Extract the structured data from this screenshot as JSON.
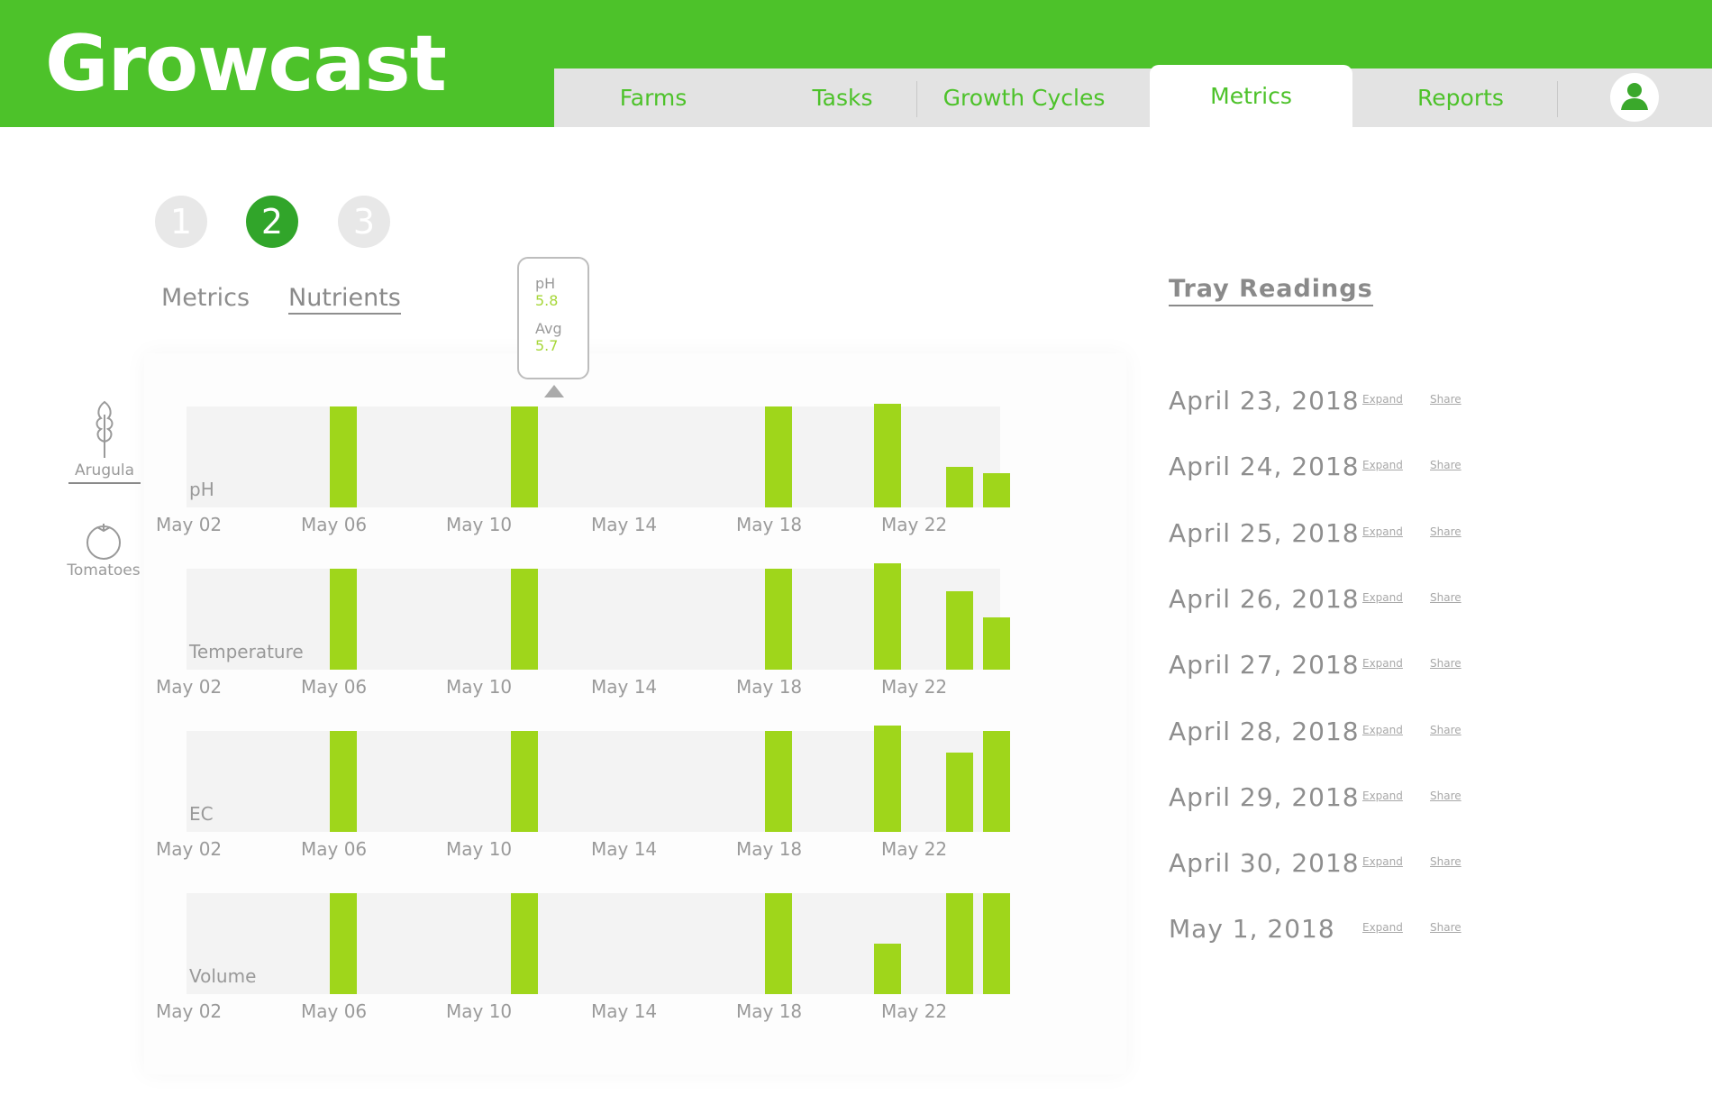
{
  "app": {
    "title": "Growcast"
  },
  "nav": {
    "tabs": [
      {
        "label": "Farms"
      },
      {
        "label": "Tasks"
      },
      {
        "label": "Growth Cycles"
      },
      {
        "label": "Metrics",
        "active": true
      },
      {
        "label": "Reports"
      }
    ],
    "profile_icon": "user-icon"
  },
  "steps": [
    {
      "label": "1"
    },
    {
      "label": "2",
      "active": true
    },
    {
      "label": "3"
    }
  ],
  "subtabs": [
    {
      "label": "Metrics"
    },
    {
      "label": "Nutrients",
      "active": true
    }
  ],
  "plants": [
    {
      "label": "Arugula",
      "icon": "arugula-leaf-icon",
      "active": true
    },
    {
      "label": "Tomatoes",
      "icon": "tomato-icon"
    }
  ],
  "tooltip": {
    "label1": "pH",
    "value1": "5.8",
    "label2": "Avg",
    "value2": "5.7"
  },
  "colors": {
    "brand": "#4dc22a",
    "bar": "#9fd61b",
    "step_active": "#31a52a"
  },
  "chart_data": {
    "type": "bar",
    "x_ticks": [
      "May 02",
      "May 06",
      "May 10",
      "May 14",
      "May 18",
      "May 22"
    ],
    "panels": [
      {
        "label": "pH",
        "bars": [
          {
            "x": "May 06",
            "value": 1.0
          },
          {
            "x": "May 11",
            "value": 1.0
          },
          {
            "x": "May 18",
            "value": 1.0
          },
          {
            "x": "May 21",
            "value": 1.03
          },
          {
            "x": "May 23",
            "value": 0.4
          },
          {
            "x": "May 24",
            "value": 0.34
          }
        ]
      },
      {
        "label": "Temperature",
        "bars": [
          {
            "x": "May 06",
            "value": 1.0
          },
          {
            "x": "May 11",
            "value": 1.0
          },
          {
            "x": "May 18",
            "value": 1.0
          },
          {
            "x": "May 21",
            "value": 1.05
          },
          {
            "x": "May 23",
            "value": 0.78
          },
          {
            "x": "May 24",
            "value": 0.52
          }
        ]
      },
      {
        "label": "EC",
        "bars": [
          {
            "x": "May 06",
            "value": 1.0
          },
          {
            "x": "May 11",
            "value": 1.0
          },
          {
            "x": "May 18",
            "value": 1.0
          },
          {
            "x": "May 21",
            "value": 1.05
          },
          {
            "x": "May 23",
            "value": 0.79
          },
          {
            "x": "May 24",
            "value": 1.0
          }
        ]
      },
      {
        "label": "Volume",
        "bars": [
          {
            "x": "May 06",
            "value": 1.0
          },
          {
            "x": "May 11",
            "value": 1.0
          },
          {
            "x": "May 18",
            "value": 1.0
          },
          {
            "x": "May 21",
            "value": 0.5
          },
          {
            "x": "May 23",
            "value": 1.0
          },
          {
            "x": "May 24",
            "value": 1.0
          }
        ]
      }
    ]
  },
  "tray": {
    "title": "Tray Readings",
    "expand_label": "Expand",
    "share_label": "Share",
    "readings": [
      {
        "date": "April 23, 2018"
      },
      {
        "date": "April 24, 2018"
      },
      {
        "date": "April 25, 2018"
      },
      {
        "date": "April 26, 2018"
      },
      {
        "date": "April 27, 2018"
      },
      {
        "date": "April 28, 2018"
      },
      {
        "date": "April 29, 2018"
      },
      {
        "date": "April 30, 2018"
      },
      {
        "date": "May 1, 2018"
      }
    ]
  }
}
